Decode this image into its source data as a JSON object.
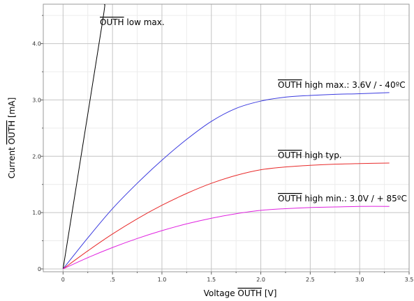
{
  "chart_data": {
    "type": "line",
    "title": "",
    "xlabel": {
      "prefix": "Voltage ",
      "over": "OUTH",
      "suffix": " [V]"
    },
    "ylabel": {
      "prefix": "Current ",
      "over": "OUTH",
      "suffix": " [mA]"
    },
    "xlim": [
      -0.2,
      3.5
    ],
    "ylim": [
      -0.05,
      4.7
    ],
    "x_ticks": [
      0,
      0.5,
      1.0,
      1.5,
      2.0,
      2.5,
      3.0,
      3.5
    ],
    "x_tick_labels": [
      "0",
      ".5",
      "1.0",
      "1.5",
      "2.0",
      "2.5",
      "3.0",
      "3.5"
    ],
    "y_ticks": [
      0,
      1.0,
      2.0,
      3.0,
      4.0
    ],
    "y_tick_labels": [
      "0",
      "1.0",
      "2.0",
      "3.0",
      "4.0"
    ],
    "grid": true,
    "legend": "none",
    "series": [
      {
        "color": "#000000",
        "label": {
          "over": "OUTH",
          "text": " low max."
        },
        "points": [
          [
            0,
            0
          ],
          [
            0.2,
            2.2
          ],
          [
            0.4,
            4.4
          ],
          [
            0.42,
            4.7
          ]
        ]
      },
      {
        "color": "#3a3adf",
        "label": {
          "over": "OUTH",
          "text": " high max.: 3.6V / - 40ºC"
        },
        "points": [
          [
            0,
            0
          ],
          [
            0.25,
            0.55
          ],
          [
            0.5,
            1.07
          ],
          [
            0.75,
            1.52
          ],
          [
            1.0,
            1.93
          ],
          [
            1.25,
            2.3
          ],
          [
            1.5,
            2.62
          ],
          [
            1.75,
            2.85
          ],
          [
            2.0,
            2.98
          ],
          [
            2.25,
            3.05
          ],
          [
            2.5,
            3.08
          ],
          [
            2.75,
            3.1
          ],
          [
            3.0,
            3.11
          ],
          [
            3.3,
            3.13
          ]
        ]
      },
      {
        "color": "#e82a2a",
        "label": {
          "over": "OUTH",
          "text": " high typ."
        },
        "points": [
          [
            0,
            0
          ],
          [
            0.25,
            0.32
          ],
          [
            0.5,
            0.62
          ],
          [
            0.75,
            0.89
          ],
          [
            1.0,
            1.13
          ],
          [
            1.25,
            1.34
          ],
          [
            1.5,
            1.52
          ],
          [
            1.75,
            1.66
          ],
          [
            2.0,
            1.76
          ],
          [
            2.25,
            1.81
          ],
          [
            2.5,
            1.84
          ],
          [
            2.75,
            1.86
          ],
          [
            3.0,
            1.87
          ],
          [
            3.3,
            1.88
          ]
        ]
      },
      {
        "color": "#e021e0",
        "label": {
          "over": "OUTH",
          "text": " high min.: 3.0V / + 85ºC"
        },
        "points": [
          [
            0,
            0
          ],
          [
            0.25,
            0.2
          ],
          [
            0.5,
            0.38
          ],
          [
            0.75,
            0.54
          ],
          [
            1.0,
            0.68
          ],
          [
            1.25,
            0.8
          ],
          [
            1.5,
            0.9
          ],
          [
            1.75,
            0.98
          ],
          [
            2.0,
            1.04
          ],
          [
            2.25,
            1.07
          ],
          [
            2.5,
            1.09
          ],
          [
            2.75,
            1.1
          ],
          [
            3.0,
            1.11
          ],
          [
            3.3,
            1.11
          ]
        ]
      }
    ]
  }
}
